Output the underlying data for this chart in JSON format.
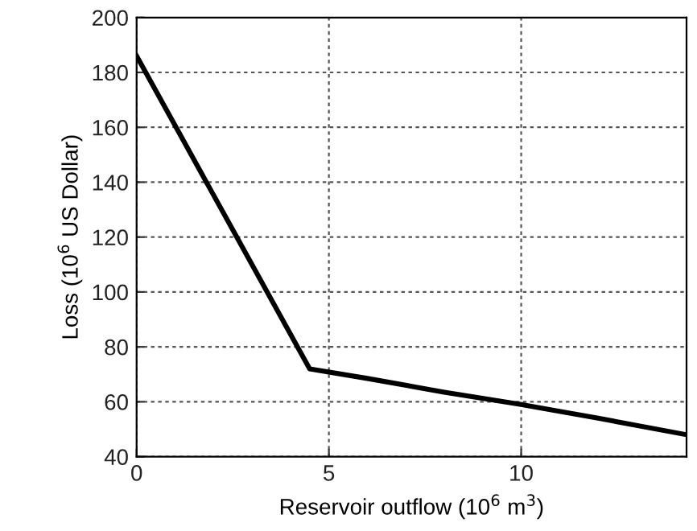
{
  "chart_data": {
    "type": "line",
    "xlabel": "Reservoir outflow (10$^{6}$ m$^{3}$)",
    "ylabel": "Loss (10$^{6}$ US Dollar)",
    "x": [
      0,
      4.5,
      6,
      8,
      10,
      12,
      14.3
    ],
    "series": [
      {
        "color": "#000000",
        "values": [
          186,
          72,
          68.5,
          63.5,
          59,
          54,
          48
        ]
      }
    ],
    "xlim": [
      0,
      14.3
    ],
    "ylim": [
      40,
      200
    ],
    "xticks": [
      0,
      5,
      10
    ],
    "yticks": [
      40,
      60,
      80,
      100,
      120,
      140,
      160,
      180,
      200
    ],
    "grid": true,
    "line_style": "solid",
    "marker": "none"
  }
}
